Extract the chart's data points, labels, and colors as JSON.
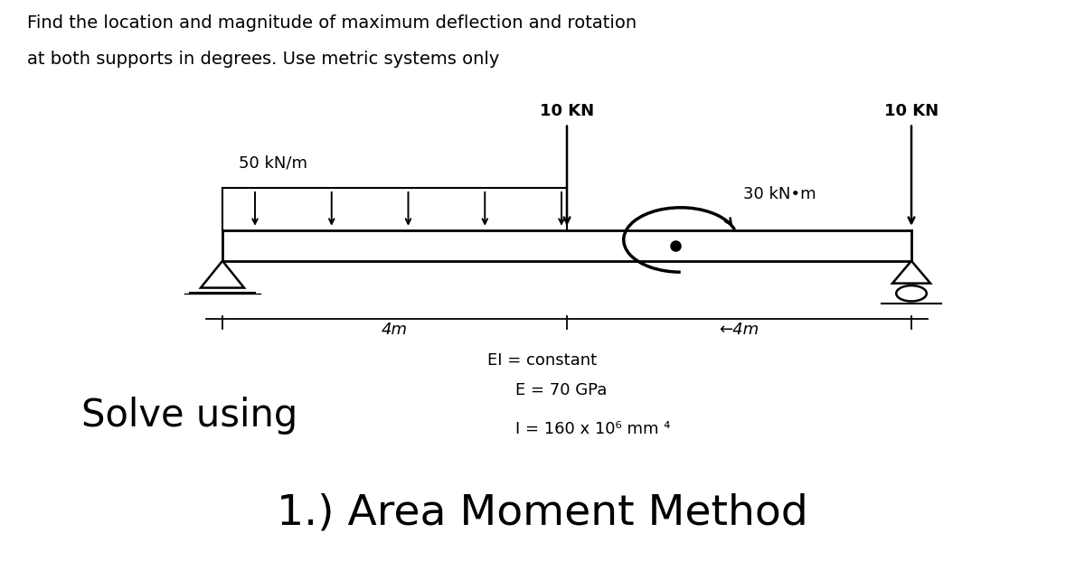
{
  "title_line1": "Find the location and magnitude of maximum deflection and rotation",
  "title_line2": "at both supports in degrees. Use metric systems only",
  "title_fontsize": 14,
  "bg_color": "#ffffff",
  "udl_label": "50 kN/m",
  "point_load1_label": "10 KN",
  "point_load2_label": "10 KN",
  "moment_label": "30 kN•m",
  "dim_label_left": "4m",
  "dim_label_right": "4m",
  "EI_text": "EI = constant",
  "E_text": "E = 70 GPa",
  "I_text": "I = 160 x 10⁶ mm ⁴",
  "solve_text": "Solve using",
  "method_text": "1.) Area Moment Method",
  "solve_fontsize": 30,
  "method_fontsize": 34,
  "info_fontsize": 13
}
